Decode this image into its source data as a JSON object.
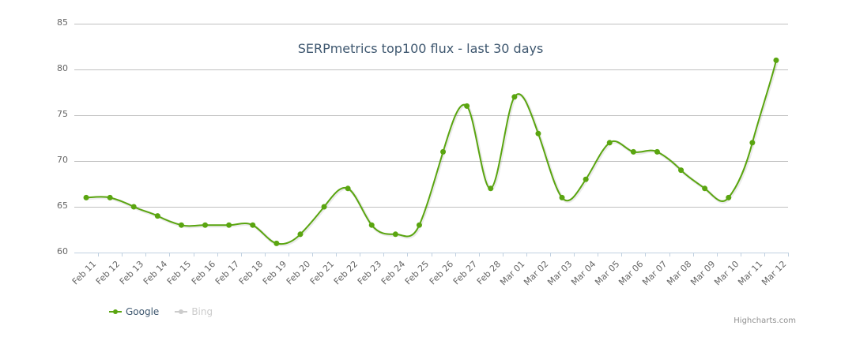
{
  "chart_data": {
    "type": "line",
    "title": "SERPmetrics top100 flux - last 30 days",
    "xlabel": "",
    "ylabel": "",
    "ylim": [
      60,
      85
    ],
    "yticks": [
      60,
      65,
      70,
      75,
      80,
      85
    ],
    "grid": true,
    "legend_position": "bottom-left",
    "categories": [
      "Feb 11",
      "Feb 12",
      "Feb 13",
      "Feb 14",
      "Feb 15",
      "Feb 16",
      "Feb 17",
      "Feb 18",
      "Feb 19",
      "Feb 20",
      "Feb 21",
      "Feb 22",
      "Feb 23",
      "Feb 24",
      "Feb 25",
      "Feb 26",
      "Feb 27",
      "Feb 28",
      "Mar 01",
      "Mar 02",
      "Mar 03",
      "Mar 04",
      "Mar 05",
      "Mar 06",
      "Mar 07",
      "Mar 08",
      "Mar 09",
      "Mar 10",
      "Mar 11",
      "Mar 12"
    ],
    "series": [
      {
        "name": "Google",
        "visible": true,
        "color": "#5aa510",
        "values": [
          66,
          66,
          65,
          64,
          63,
          63,
          63,
          63,
          61,
          62,
          65,
          67,
          63,
          62,
          63,
          71,
          76,
          67,
          77,
          73,
          66,
          68,
          72,
          71,
          71,
          69,
          67,
          66,
          72,
          81
        ]
      },
      {
        "name": "Bing",
        "visible": false,
        "color": "#cccccc",
        "values": []
      }
    ]
  },
  "legend": {
    "items": [
      {
        "label": "Google",
        "color": "#5aa510",
        "text_color": "#3e576f"
      },
      {
        "label": "Bing",
        "color": "#cccccc",
        "text_color": "#cccccc"
      }
    ]
  },
  "credits": "Highcharts.com"
}
